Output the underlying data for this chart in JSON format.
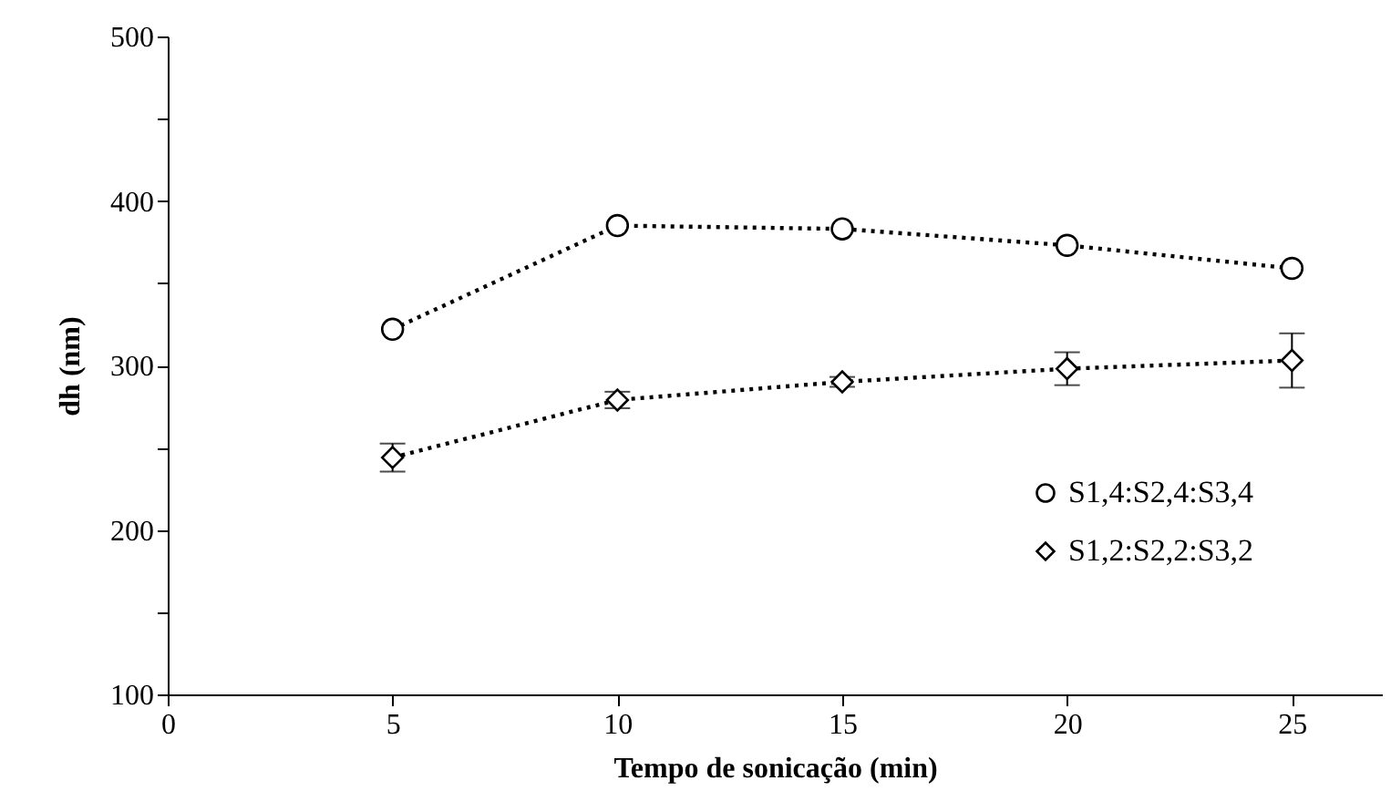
{
  "chart_data": {
    "type": "line",
    "xlabel": "Tempo de sonicação (min)",
    "ylabel": "dh (nm)",
    "x": [
      5,
      10,
      15,
      20,
      25
    ],
    "series": [
      {
        "name": "S1,4:S2,4:S3,4",
        "color": "#000000",
        "marker": "circle",
        "values": [
          322,
          385,
          383,
          373,
          359
        ]
      },
      {
        "name": "S1,2:S2,2:S3,2",
        "color": "#000000",
        "marker": "diamond",
        "values": [
          244,
          279,
          290,
          298,
          303
        ],
        "errors": [
          8.5,
          5,
          3,
          10,
          16.5
        ]
      }
    ],
    "xlim": [
      0,
      27
    ],
    "xticks": [
      0,
      5,
      10,
      15,
      20,
      25
    ],
    "ylim": [
      100,
      500
    ],
    "yticks": [
      100,
      {
        "value": 150,
        "label": null
      },
      200,
      {
        "value": 250,
        "label": null
      },
      300,
      {
        "value": 350,
        "label": null
      },
      400,
      {
        "value": 450,
        "label": null
      },
      500
    ],
    "grid": false,
    "legend": "bottom right",
    "line_style": "dotted"
  }
}
